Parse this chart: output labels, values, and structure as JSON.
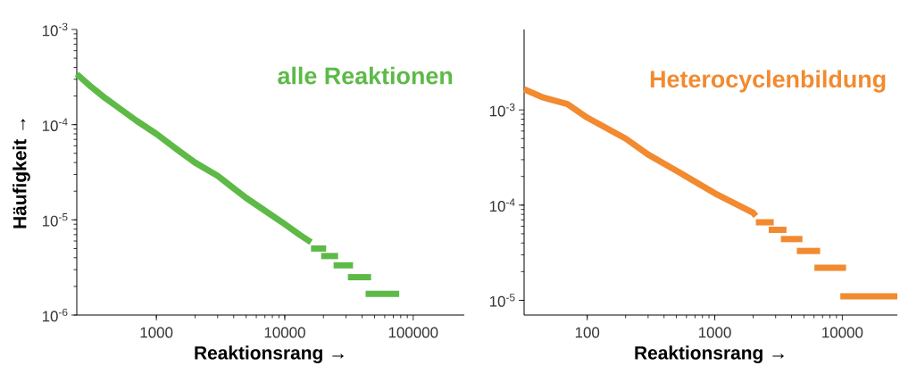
{
  "chart_data": [
    {
      "type": "line",
      "title": "alle Reaktionen",
      "xlabel": "Reaktionsrang →",
      "ylabel": "Häufigkeit →",
      "log": "xy",
      "series": [
        {
          "color": "#5dba47",
          "x": [
            240,
            300,
            400,
            500,
            700,
            1000,
            1500,
            2000,
            3000,
            5000,
            7000,
            10000,
            13000,
            16000
          ],
          "values": [
            0.00034,
            0.00026,
            0.00019,
            0.000153,
            0.00011,
            8e-05,
            5.3e-05,
            4e-05,
            2.9e-05,
            1.7e-05,
            1.25e-05,
            9e-06,
            7e-06,
            5.83e-06
          ]
        },
        {
          "color": "#5dba47",
          "x": [
            16000,
            21000
          ],
          "values": [
            5e-06,
            5e-06
          ]
        },
        {
          "color": "#5dba47",
          "x": [
            19200,
            26000
          ],
          "values": [
            4.17e-06,
            4.17e-06
          ]
        },
        {
          "color": "#5dba47",
          "x": [
            24000,
            34000
          ],
          "values": [
            3.33e-06,
            3.33e-06
          ]
        },
        {
          "color": "#5dba47",
          "x": [
            31000,
            47000
          ],
          "values": [
            2.5e-06,
            2.5e-06
          ]
        },
        {
          "color": "#5dba47",
          "x": [
            42600,
            77800
          ],
          "values": [
            1.67e-06,
            1.67e-06
          ]
        }
      ],
      "xlim": [
        240,
        250000
      ],
      "ylim": [
        1e-06,
        0.001
      ],
      "xticks": [
        1000,
        10000,
        100000
      ],
      "yticks": [
        {
          "value": 1e-06,
          "label": "10$^{-6}$"
        },
        {
          "value": 1e-05,
          "label": "10$^{-5}$"
        },
        {
          "value": 0.0001,
          "label": "10$^{-4}$"
        },
        {
          "value": 0.001,
          "label": "10$^{-3}$"
        }
      ]
    },
    {
      "type": "line",
      "title": "Heterocyclenbildung",
      "xlabel": "Reaktionsrang →",
      "log": "xy",
      "series": [
        {
          "color": "#f28a30",
          "x": [
            32,
            45,
            70,
            100,
            200,
            300,
            500,
            1000,
            2000,
            2100
          ],
          "values": [
            0.00165,
            0.00135,
            0.00115,
            0.00083,
            0.0005,
            0.00034,
            0.00023,
            0.000133,
            8.3e-05,
            7.7e-05
          ]
        },
        {
          "color": "#f28a30",
          "x": [
            2100,
            2900
          ],
          "values": [
            6.6e-05,
            6.6e-05
          ]
        },
        {
          "color": "#f28a30",
          "x": [
            2650,
            3650
          ],
          "values": [
            5.5e-05,
            5.5e-05
          ]
        },
        {
          "color": "#f28a30",
          "x": [
            3300,
            4870
          ],
          "values": [
            4.4e-05,
            4.4e-05
          ]
        },
        {
          "color": "#f28a30",
          "x": [
            4400,
            6700
          ],
          "values": [
            3.3e-05,
            3.3e-05
          ]
        },
        {
          "color": "#f28a30",
          "x": [
            6040,
            10700
          ],
          "values": [
            2.2e-05,
            2.2e-05
          ]
        },
        {
          "color": "#f28a30",
          "x": [
            9650,
            27000
          ],
          "values": [
            1.1e-05,
            1.1e-05
          ]
        }
      ],
      "xlim": [
        32,
        27000
      ],
      "ylim": [
        7e-06,
        0.007
      ],
      "xticks": [
        100,
        1000,
        10000
      ],
      "yticks": [
        {
          "value": 1e-05,
          "label": "10$^{-5}$"
        },
        {
          "value": 0.0001,
          "label": "10$^{-4}$"
        },
        {
          "value": 0.001,
          "label": "10$^{-3}$"
        }
      ]
    }
  ]
}
